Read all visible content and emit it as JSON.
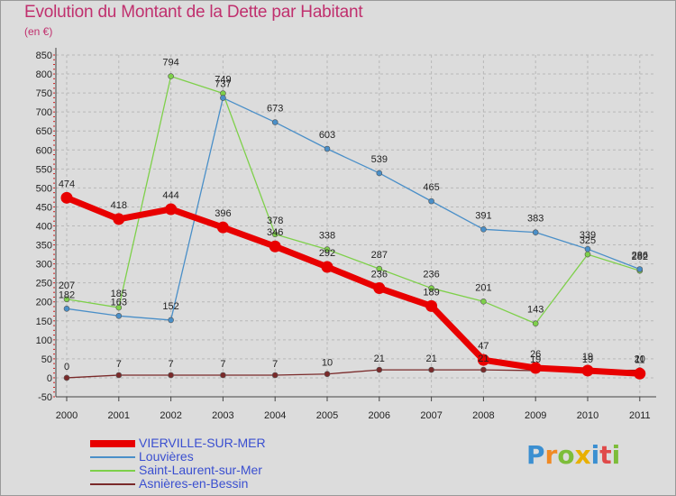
{
  "title": "Evolution du Montant de la Dette par Habitant",
  "subtitle": "(en €)",
  "logo": {
    "letters": [
      "P",
      "r",
      "o",
      "x",
      "i",
      "t",
      "i"
    ],
    "colors": [
      "#3b8fd1",
      "#f08a24",
      "#7dbd3a",
      "#e8b000",
      "#3b8fd1",
      "#e04a4a",
      "#7dbd3a"
    ]
  },
  "chart_data": {
    "type": "line",
    "x": [
      "2000",
      "2001",
      "2002",
      "2003",
      "2004",
      "2005",
      "2006",
      "2007",
      "2008",
      "2009",
      "2010",
      "2011"
    ],
    "ylim": [
      -50,
      850
    ],
    "yticks": [
      "850",
      "800",
      "750",
      "700",
      "650",
      "600",
      "550",
      "500",
      "450",
      "400",
      "350",
      "300",
      "250",
      "200",
      "150",
      "100",
      "50",
      "0",
      "-50"
    ],
    "grid": true,
    "legend_position": "bottom-left",
    "series": [
      {
        "name": "VIERVILLE-SUR-MER",
        "color": "#e80000",
        "values": [
          474,
          418,
          444,
          396,
          346,
          292,
          236,
          189,
          47,
          26,
          19,
          11
        ],
        "labels": [
          "474",
          "418",
          "444",
          "396",
          "346",
          "292",
          "236",
          "189",
          "47",
          "26",
          "19",
          "11"
        ]
      },
      {
        "name": "Louvières",
        "color": "#4a8fc8",
        "values": [
          182,
          163,
          152,
          737,
          673,
          603,
          539,
          465,
          391,
          383,
          339,
          286
        ],
        "labels": [
          "182",
          "163",
          "152",
          "737",
          "673",
          "603",
          "539",
          "465",
          "391",
          "383",
          "339",
          "286"
        ]
      },
      {
        "name": "Saint-Laurent-sur-Mer",
        "color": "#7ed04a",
        "values": [
          207,
          185,
          794,
          749,
          378,
          338,
          287,
          236,
          201,
          143,
          325,
          282
        ],
        "labels": [
          "207",
          "185",
          "794",
          "749",
          "378",
          "338",
          "287",
          "236",
          "201",
          "143",
          "325",
          "282"
        ]
      },
      {
        "name": "Asnières-en-Bessin",
        "color": "#7a2a2a",
        "values": [
          0,
          7,
          7,
          7,
          7,
          10,
          21,
          21,
          21,
          19,
          19,
          20
        ],
        "labels": [
          "0",
          "7",
          "7",
          "7",
          "7",
          "10",
          "21",
          "21",
          "21",
          "19",
          "19",
          "20"
        ]
      }
    ]
  }
}
